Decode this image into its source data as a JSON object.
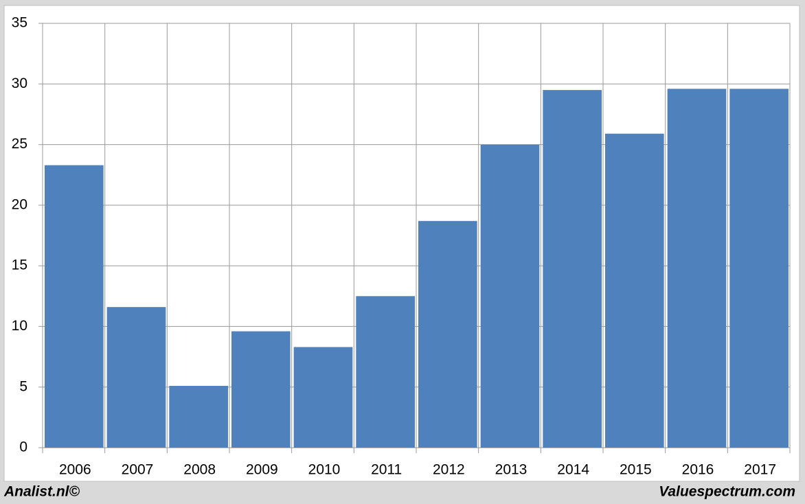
{
  "chart_data": {
    "type": "bar",
    "categories": [
      "2006",
      "2007",
      "2008",
      "2009",
      "2010",
      "2011",
      "2012",
      "2013",
      "2014",
      "2015",
      "2016",
      "2017"
    ],
    "values": [
      23.3,
      11.6,
      5.1,
      9.6,
      8.3,
      12.5,
      18.7,
      25,
      29.5,
      25.9,
      29.6,
      29.6
    ],
    "color": "#4f81bd",
    "ylim": [
      0,
      35
    ],
    "yticks": [
      0,
      5,
      10,
      15,
      20,
      25,
      30,
      35
    ],
    "grid": true,
    "footer": {
      "left": "Analist.nl©",
      "right": "Valuespectrum.com"
    }
  }
}
